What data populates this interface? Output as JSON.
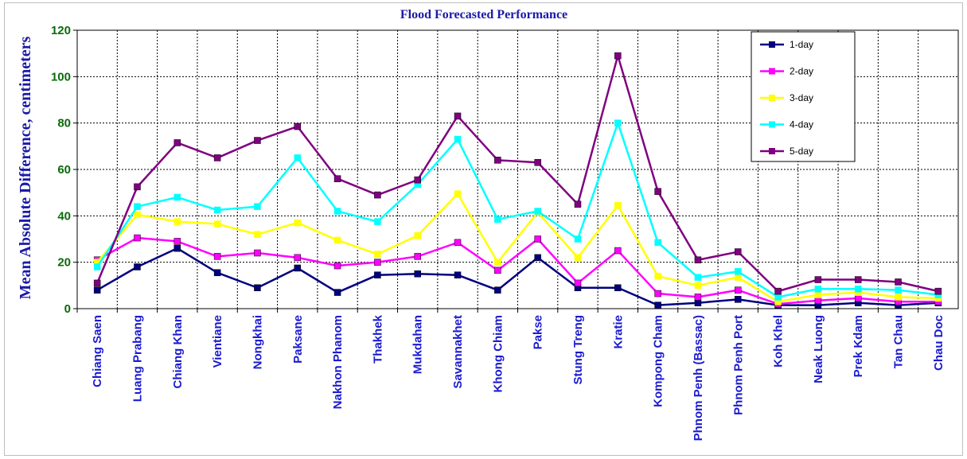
{
  "chart_data": {
    "type": "line",
    "title": "Flood Forecasted Performance",
    "xlabel": "",
    "ylabel": "Mean Absolute Difference, centimeters",
    "ylim": [
      0,
      120
    ],
    "yticks": [
      0,
      20,
      40,
      60,
      80,
      100,
      120
    ],
    "grid": true,
    "legend_position": "top-right",
    "categories": [
      "Chiang Saen",
      "Luang Prabang",
      "Chiang Khan",
      "Vientiane",
      "Nongkhai",
      "Paksane",
      "Nakhon Phanom",
      "Thakhek",
      "Mukdahan",
      "Savannakhet",
      "Khong Chiam",
      "Pakse",
      "Stung Treng",
      "Kratie",
      "Kompong Cham",
      "Phnom Penh (Bassac)",
      "Phnom Penh Port",
      "Koh Khel",
      "Neak Luong",
      "Prek Kdam",
      "Tan Chau",
      "Chau Doc"
    ],
    "series": [
      {
        "name": "1-day",
        "color": "#000080",
        "values": [
          8,
          18,
          26,
          15.5,
          9,
          17.5,
          7,
          14.5,
          15,
          14.5,
          8,
          22,
          9,
          9,
          1.5,
          2.5,
          4,
          1.5,
          1.5,
          2.5,
          1.5,
          2.5
        ]
      },
      {
        "name": "2-day",
        "color": "#ff00ff",
        "values": [
          21,
          30.5,
          29,
          22.5,
          24,
          22,
          18.5,
          20,
          22.5,
          28.5,
          16.5,
          30,
          11,
          25,
          6.5,
          5,
          8,
          2,
          3.5,
          4.5,
          3,
          3
        ]
      },
      {
        "name": "3-day",
        "color": "#ffff00",
        "values": [
          20,
          40.5,
          37.5,
          36.5,
          32,
          37,
          29.5,
          23.5,
          31.5,
          49.5,
          20,
          41.5,
          22,
          44.5,
          14,
          10,
          13.5,
          3,
          6,
          7,
          5,
          4.5
        ]
      },
      {
        "name": "4-day",
        "color": "#00ffff",
        "values": [
          18,
          44,
          48,
          42.5,
          44,
          65,
          42,
          37.5,
          53.5,
          73,
          38.5,
          42,
          30,
          80,
          28.5,
          13.5,
          16,
          5,
          8.5,
          8.5,
          8,
          6
        ]
      },
      {
        "name": "5-day",
        "color": "#800080",
        "values": [
          11,
          52.5,
          71.5,
          65,
          72.5,
          78.5,
          56,
          49,
          55.5,
          83,
          64,
          63,
          45,
          109,
          50.5,
          21,
          24.5,
          7.5,
          12.5,
          12.5,
          11.5,
          7.5
        ]
      }
    ]
  }
}
